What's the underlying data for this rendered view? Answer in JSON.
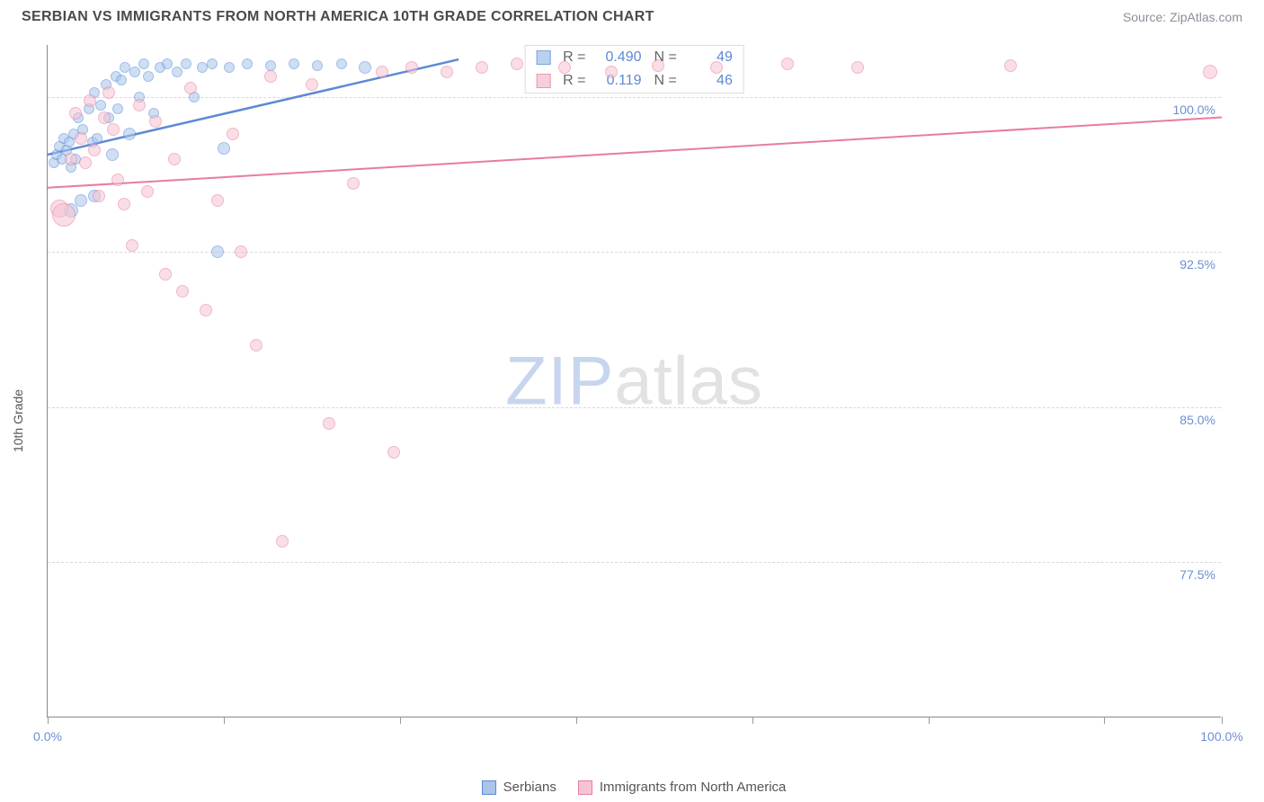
{
  "title": "SERBIAN VS IMMIGRANTS FROM NORTH AMERICA 10TH GRADE CORRELATION CHART",
  "source": "Source: ZipAtlas.com",
  "y_axis_label": "10th Grade",
  "watermark": {
    "a": "ZIP",
    "b": "atlas"
  },
  "chart": {
    "type": "scatter",
    "background_color": "#ffffff",
    "grid_color": "#d8d8d8",
    "axis_color": "#888888",
    "label_color": "#6b8fd6",
    "label_fontsize": 14,
    "xlim": [
      0,
      100
    ],
    "ylim": [
      70,
      102.5
    ],
    "xticks": [
      0,
      15,
      30,
      45,
      60,
      75,
      90,
      100
    ],
    "xtick_labels": {
      "0": "0.0%",
      "100": "100.0%"
    },
    "yticks": [
      77.5,
      85.0,
      92.5,
      100.0
    ],
    "ytick_labels": [
      "77.5%",
      "85.0%",
      "92.5%",
      "100.0%"
    ],
    "series": [
      {
        "name": "Serbians",
        "fill": "#a9c6ea",
        "stroke": "#5b8ad6",
        "fill_opacity": 0.55,
        "r_label": "R =",
        "n_label": "N =",
        "r": "0.490",
        "n": "49",
        "trend": {
          "x1": 0,
          "y1": 97.2,
          "x2": 35,
          "y2": 101.8,
          "width": 2.5
        },
        "points": [
          {
            "x": 0.5,
            "y": 96.8,
            "r": 6
          },
          {
            "x": 0.8,
            "y": 97.2,
            "r": 6
          },
          {
            "x": 1.0,
            "y": 97.6,
            "r": 6
          },
          {
            "x": 1.2,
            "y": 97.0,
            "r": 6
          },
          {
            "x": 1.4,
            "y": 98.0,
            "r": 6
          },
          {
            "x": 1.6,
            "y": 97.4,
            "r": 6
          },
          {
            "x": 1.8,
            "y": 97.8,
            "r": 6
          },
          {
            "x": 2.0,
            "y": 96.6,
            "r": 6
          },
          {
            "x": 2.2,
            "y": 98.2,
            "r": 6
          },
          {
            "x": 2.4,
            "y": 97.0,
            "r": 6
          },
          {
            "x": 2.6,
            "y": 99.0,
            "r": 6
          },
          {
            "x": 2.8,
            "y": 95.0,
            "r": 7
          },
          {
            "x": 3.0,
            "y": 98.4,
            "r": 6
          },
          {
            "x": 3.5,
            "y": 99.4,
            "r": 6
          },
          {
            "x": 3.8,
            "y": 97.8,
            "r": 6
          },
          {
            "x": 4.0,
            "y": 100.2,
            "r": 6
          },
          {
            "x": 4.2,
            "y": 98.0,
            "r": 6
          },
          {
            "x": 4.5,
            "y": 99.6,
            "r": 6
          },
          {
            "x": 5.0,
            "y": 100.6,
            "r": 6
          },
          {
            "x": 5.2,
            "y": 99.0,
            "r": 6
          },
          {
            "x": 5.5,
            "y": 97.2,
            "r": 7
          },
          {
            "x": 5.8,
            "y": 101.0,
            "r": 6
          },
          {
            "x": 6.0,
            "y": 99.4,
            "r": 6
          },
          {
            "x": 6.3,
            "y": 100.8,
            "r": 6
          },
          {
            "x": 6.6,
            "y": 101.4,
            "r": 6
          },
          {
            "x": 7.0,
            "y": 98.2,
            "r": 7
          },
          {
            "x": 7.4,
            "y": 101.2,
            "r": 6
          },
          {
            "x": 7.8,
            "y": 100.0,
            "r": 6
          },
          {
            "x": 8.2,
            "y": 101.6,
            "r": 6
          },
          {
            "x": 8.6,
            "y": 101.0,
            "r": 6
          },
          {
            "x": 9.0,
            "y": 99.2,
            "r": 6
          },
          {
            "x": 9.6,
            "y": 101.4,
            "r": 6
          },
          {
            "x": 10.2,
            "y": 101.6,
            "r": 6
          },
          {
            "x": 11.0,
            "y": 101.2,
            "r": 6
          },
          {
            "x": 11.8,
            "y": 101.6,
            "r": 6
          },
          {
            "x": 12.5,
            "y": 100.0,
            "r": 6
          },
          {
            "x": 13.2,
            "y": 101.4,
            "r": 6
          },
          {
            "x": 14.0,
            "y": 101.6,
            "r": 6
          },
          {
            "x": 15.0,
            "y": 97.5,
            "r": 7
          },
          {
            "x": 15.5,
            "y": 101.4,
            "r": 6
          },
          {
            "x": 17.0,
            "y": 101.6,
            "r": 6
          },
          {
            "x": 19.0,
            "y": 101.5,
            "r": 6
          },
          {
            "x": 21.0,
            "y": 101.6,
            "r": 6
          },
          {
            "x": 23.0,
            "y": 101.5,
            "r": 6
          },
          {
            "x": 25.0,
            "y": 101.6,
            "r": 6
          },
          {
            "x": 27.0,
            "y": 101.4,
            "r": 7
          },
          {
            "x": 2.0,
            "y": 94.5,
            "r": 8
          },
          {
            "x": 4.0,
            "y": 95.2,
            "r": 7
          },
          {
            "x": 14.5,
            "y": 92.5,
            "r": 7
          }
        ]
      },
      {
        "name": "Immigrants from North America",
        "fill": "#f5c4d2",
        "stroke": "#e87ca0",
        "fill_opacity": 0.55,
        "r_label": "R =",
        "n_label": "N =",
        "r": "0.119",
        "n": "46",
        "trend": {
          "x1": 0,
          "y1": 95.6,
          "x2": 100,
          "y2": 99.0,
          "width": 2
        },
        "points": [
          {
            "x": 1.0,
            "y": 94.6,
            "r": 10
          },
          {
            "x": 1.4,
            "y": 94.3,
            "r": 13
          },
          {
            "x": 2.0,
            "y": 97.0,
            "r": 7
          },
          {
            "x": 2.4,
            "y": 99.2,
            "r": 7
          },
          {
            "x": 2.8,
            "y": 98.0,
            "r": 7
          },
          {
            "x": 3.2,
            "y": 96.8,
            "r": 7
          },
          {
            "x": 3.6,
            "y": 99.8,
            "r": 7
          },
          {
            "x": 4.0,
            "y": 97.4,
            "r": 7
          },
          {
            "x": 4.4,
            "y": 95.2,
            "r": 7
          },
          {
            "x": 4.8,
            "y": 99.0,
            "r": 7
          },
          {
            "x": 5.2,
            "y": 100.2,
            "r": 7
          },
          {
            "x": 5.6,
            "y": 98.4,
            "r": 7
          },
          {
            "x": 6.0,
            "y": 96.0,
            "r": 7
          },
          {
            "x": 6.5,
            "y": 94.8,
            "r": 7
          },
          {
            "x": 7.2,
            "y": 92.8,
            "r": 7
          },
          {
            "x": 7.8,
            "y": 99.6,
            "r": 7
          },
          {
            "x": 8.5,
            "y": 95.4,
            "r": 7
          },
          {
            "x": 9.2,
            "y": 98.8,
            "r": 7
          },
          {
            "x": 10.0,
            "y": 91.4,
            "r": 7
          },
          {
            "x": 10.8,
            "y": 97.0,
            "r": 7
          },
          {
            "x": 11.5,
            "y": 90.6,
            "r": 7
          },
          {
            "x": 12.2,
            "y": 100.4,
            "r": 7
          },
          {
            "x": 13.5,
            "y": 89.7,
            "r": 7
          },
          {
            "x": 14.5,
            "y": 95.0,
            "r": 7
          },
          {
            "x": 15.8,
            "y": 98.2,
            "r": 7
          },
          {
            "x": 16.5,
            "y": 92.5,
            "r": 7
          },
          {
            "x": 17.8,
            "y": 88.0,
            "r": 7
          },
          {
            "x": 19.0,
            "y": 101.0,
            "r": 7
          },
          {
            "x": 20.0,
            "y": 78.5,
            "r": 7
          },
          {
            "x": 22.5,
            "y": 100.6,
            "r": 7
          },
          {
            "x": 24.0,
            "y": 84.2,
            "r": 7
          },
          {
            "x": 26.0,
            "y": 95.8,
            "r": 7
          },
          {
            "x": 28.5,
            "y": 101.2,
            "r": 7
          },
          {
            "x": 29.5,
            "y": 82.8,
            "r": 7
          },
          {
            "x": 31.0,
            "y": 101.4,
            "r": 7
          },
          {
            "x": 34.0,
            "y": 101.2,
            "r": 7
          },
          {
            "x": 37.0,
            "y": 101.4,
            "r": 7
          },
          {
            "x": 40.0,
            "y": 101.6,
            "r": 7
          },
          {
            "x": 44.0,
            "y": 101.4,
            "r": 7
          },
          {
            "x": 48.0,
            "y": 101.2,
            "r": 7
          },
          {
            "x": 52.0,
            "y": 101.5,
            "r": 7
          },
          {
            "x": 57.0,
            "y": 101.4,
            "r": 7
          },
          {
            "x": 63.0,
            "y": 101.6,
            "r": 7
          },
          {
            "x": 69.0,
            "y": 101.4,
            "r": 7
          },
          {
            "x": 82.0,
            "y": 101.5,
            "r": 7
          },
          {
            "x": 99.0,
            "y": 101.2,
            "r": 8
          }
        ]
      }
    ]
  },
  "legend": [
    {
      "label": "Serbians",
      "fill": "#a9c6ea",
      "stroke": "#5b8ad6"
    },
    {
      "label": "Immigrants from North America",
      "fill": "#f5c4d2",
      "stroke": "#e87ca0"
    }
  ]
}
